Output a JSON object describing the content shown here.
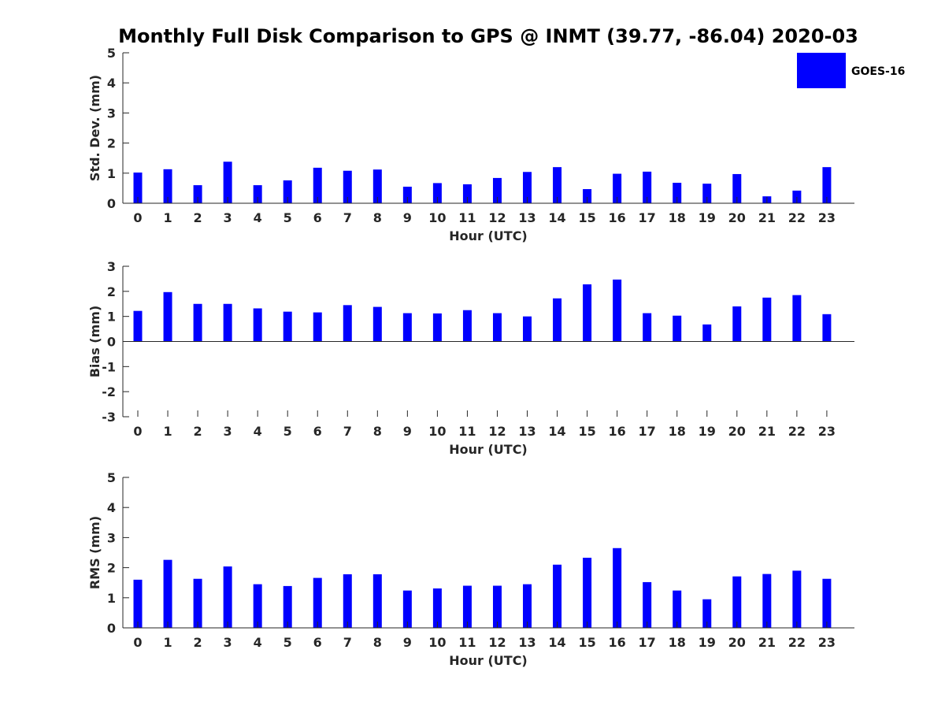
{
  "title": "Monthly Full Disk Comparison to GPS @ INMT (39.77, -86.04) 2020-03",
  "colors": {
    "bar": "#0000ff",
    "axis": "#262626"
  },
  "legend": {
    "label": "GOES-16",
    "placement": "top-right"
  },
  "chart_data": [
    {
      "type": "bar",
      "name": "std-dev",
      "series_name": "GOES-16",
      "categories": [
        "0",
        "1",
        "2",
        "3",
        "4",
        "5",
        "6",
        "7",
        "8",
        "9",
        "10",
        "11",
        "12",
        "13",
        "14",
        "15",
        "16",
        "17",
        "18",
        "19",
        "20",
        "21",
        "22",
        "23"
      ],
      "values": [
        1.02,
        1.13,
        0.6,
        1.38,
        0.6,
        0.76,
        1.18,
        1.08,
        1.12,
        0.55,
        0.67,
        0.63,
        0.84,
        1.04,
        1.2,
        0.47,
        0.98,
        1.05,
        0.68,
        0.65,
        0.97,
        0.23,
        0.42,
        1.2
      ],
      "xlabel": "Hour (UTC)",
      "ylabel": "Std. Dev. (mm)",
      "ylim": [
        0,
        5
      ],
      "yticks": [
        "0",
        "1",
        "2",
        "3",
        "4",
        "5"
      ],
      "grid": false
    },
    {
      "type": "bar",
      "name": "bias",
      "series_name": "GOES-16",
      "categories": [
        "0",
        "1",
        "2",
        "3",
        "4",
        "5",
        "6",
        "7",
        "8",
        "9",
        "10",
        "11",
        "12",
        "13",
        "14",
        "15",
        "16",
        "17",
        "18",
        "19",
        "20",
        "21",
        "22",
        "23"
      ],
      "values": [
        1.22,
        1.97,
        1.5,
        1.5,
        1.32,
        1.19,
        1.16,
        1.45,
        1.38,
        1.13,
        1.12,
        1.25,
        1.13,
        1.0,
        1.72,
        2.28,
        2.47,
        1.13,
        1.03,
        0.68,
        1.4,
        1.75,
        1.85,
        1.09
      ],
      "xlabel": "Hour (UTC)",
      "ylabel": "Bias (mm)",
      "ylim": [
        -3,
        3
      ],
      "yticks": [
        "-3",
        "-2",
        "-1",
        "0",
        "1",
        "2",
        "3"
      ],
      "grid": false
    },
    {
      "type": "bar",
      "name": "rms",
      "series_name": "GOES-16",
      "categories": [
        "0",
        "1",
        "2",
        "3",
        "4",
        "5",
        "6",
        "7",
        "8",
        "9",
        "10",
        "11",
        "12",
        "13",
        "14",
        "15",
        "16",
        "17",
        "18",
        "19",
        "20",
        "21",
        "22",
        "23"
      ],
      "values": [
        1.6,
        2.26,
        1.63,
        2.04,
        1.45,
        1.39,
        1.66,
        1.78,
        1.78,
        1.24,
        1.31,
        1.4,
        1.4,
        1.45,
        2.1,
        2.33,
        2.65,
        1.52,
        1.24,
        0.95,
        1.71,
        1.79,
        1.9,
        1.63
      ],
      "xlabel": "Hour (UTC)",
      "ylabel": "RMS (mm)",
      "ylim": [
        0,
        5
      ],
      "yticks": [
        "0",
        "1",
        "2",
        "3",
        "4",
        "5"
      ],
      "grid": false
    }
  ]
}
